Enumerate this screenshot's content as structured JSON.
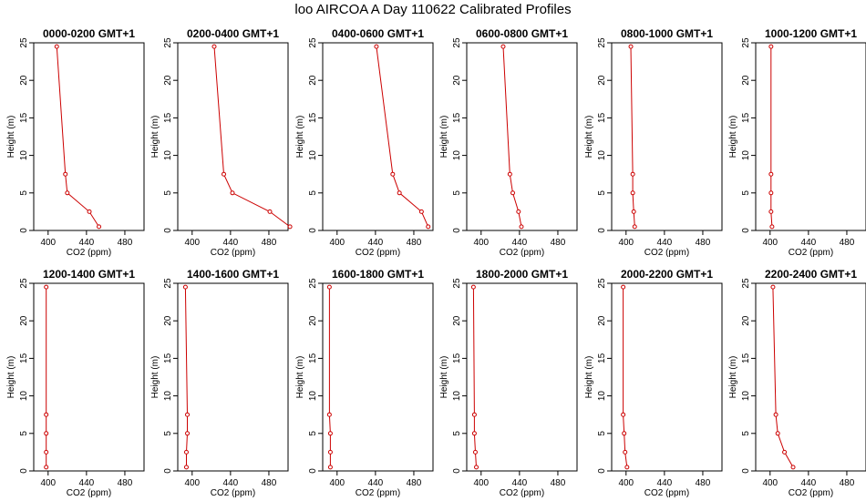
{
  "page": {
    "title": "loo AIRCOA A  Day 110622  Calibrated Profiles"
  },
  "colors": {
    "series": "#cc0000",
    "axis": "#000000"
  },
  "chart_data": {
    "type": "line",
    "xlabel": "CO2 (ppm)",
    "ylabel": "Height (m)",
    "xlim": [
      385,
      500
    ],
    "ylim": [
      0,
      25
    ],
    "xticks": [
      400,
      440,
      480
    ],
    "yticks": [
      0,
      5,
      10,
      15,
      20,
      25
    ],
    "heights": [
      0.5,
      2.5,
      5,
      7.5,
      24.5
    ],
    "panels": [
      {
        "title": "0000-0200 GMT+1",
        "values": [
          453,
          443,
          420,
          418,
          409
        ]
      },
      {
        "title": "0200-0400 GMT+1",
        "values": [
          502,
          481,
          442,
          433,
          423
        ]
      },
      {
        "title": "0400-0600 GMT+1",
        "values": [
          495,
          488,
          465,
          458,
          441
        ]
      },
      {
        "title": "0600-0800 GMT+1",
        "values": [
          442,
          439,
          433,
          430,
          423
        ]
      },
      {
        "title": "0800-1000 GMT+1",
        "values": [
          409,
          408,
          407,
          407,
          405
        ]
      },
      {
        "title": "1000-1200 GMT+1",
        "values": [
          402,
          401,
          401,
          401,
          401
        ]
      },
      {
        "title": "1200-1400 GMT+1",
        "values": [
          398,
          398,
          398,
          398,
          398
        ]
      },
      {
        "title": "1400-1600 GMT+1",
        "values": [
          394,
          394,
          395,
          395,
          393
        ]
      },
      {
        "title": "1600-1800 GMT+1",
        "values": [
          393,
          393,
          393,
          392,
          392
        ]
      },
      {
        "title": "1800-2000 GMT+1",
        "values": [
          395,
          394,
          393,
          393,
          392
        ]
      },
      {
        "title": "2000-2200 GMT+1",
        "values": [
          401,
          399,
          398,
          397,
          397
        ]
      },
      {
        "title": "2200-2400 GMT+1",
        "values": [
          424,
          415,
          408,
          406,
          403
        ]
      }
    ]
  }
}
